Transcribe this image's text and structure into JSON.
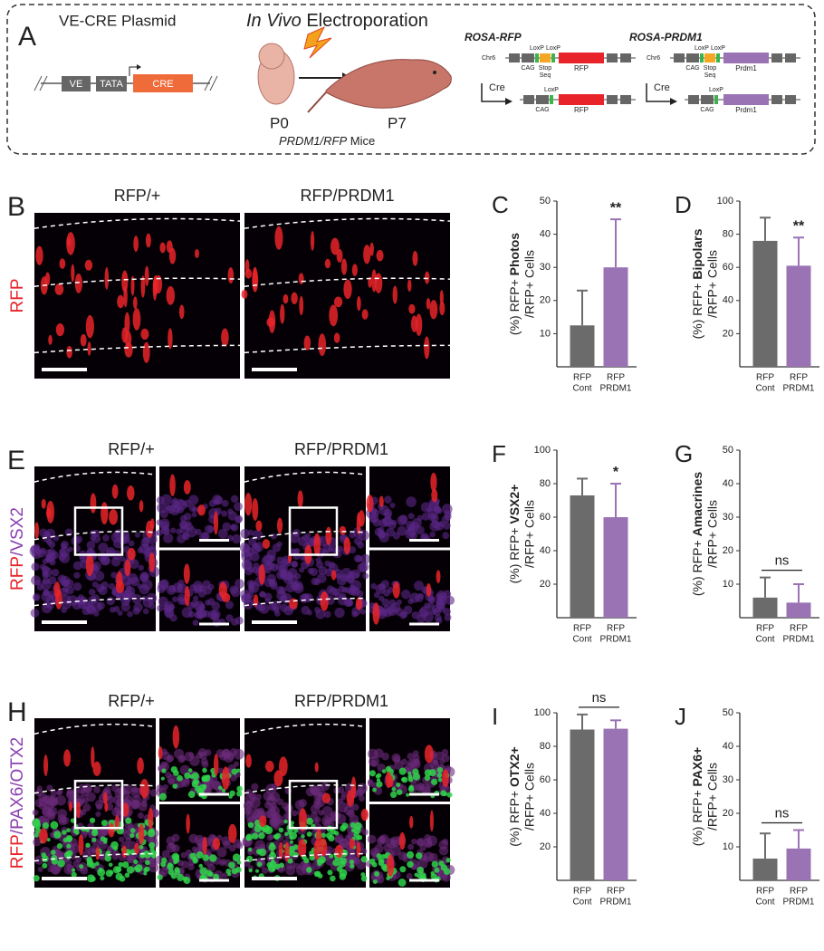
{
  "panel_a": {
    "label": "A",
    "plasmid_title": "VE-CRE Plasmid",
    "plasmid_elements": [
      "VE",
      "TATA",
      "CRE"
    ],
    "electroporation_title": [
      "In Vivo",
      " Electroporation"
    ],
    "ages": [
      "P0",
      "P7"
    ],
    "mice": [
      "PRDM1/RFP",
      " Mice"
    ],
    "constructs": [
      {
        "name": "ROSA-RFP",
        "chr": "Chr6",
        "loxp": [
          "LoxP",
          "LoxP"
        ],
        "cag": "CAG",
        "stop": [
          "Stop",
          "Seq"
        ],
        "gene": "RFP",
        "cre": "Cre",
        "recombined": [
          "LoxP",
          "CAG",
          "RFP"
        ]
      },
      {
        "name": "ROSA-PRDM1",
        "chr": "Chr6",
        "loxp": [
          "LoxP",
          "LoxP"
        ],
        "cag": "CAG",
        "stop": [
          "Stop",
          "Seq"
        ],
        "gene": "Prdm1",
        "cre": "Cre",
        "recombined": [
          "LoxP",
          "CAG",
          "Prdm1"
        ]
      }
    ]
  },
  "image_panels": [
    {
      "label": "B",
      "titles": [
        "RFP/+",
        "RFP/PRDM1"
      ],
      "stain": [
        "RFP"
      ]
    },
    {
      "label": "E",
      "titles": [
        "RFP/+",
        "RFP/PRDM1"
      ],
      "stain": [
        "RFP",
        "/VSX2"
      ]
    },
    {
      "label": "H",
      "titles": [
        "RFP/+",
        "RFP/PRDM1"
      ],
      "stain": [
        "RFP",
        "/PAX6",
        "/OTX2"
      ]
    }
  ],
  "chart_data": [
    {
      "type": "bar",
      "panel": "C",
      "ylabel": [
        "(%) RFP+ ",
        "Photos",
        "/RFP+ Cells"
      ],
      "categories": [
        [
          "RFP",
          "Cont"
        ],
        [
          "RFP",
          "PRDM1"
        ]
      ],
      "values": [
        12.5,
        30
      ],
      "errors": [
        10.5,
        14.5
      ],
      "colors": [
        "#6b6b6b",
        "#9a73b5"
      ],
      "ylim": [
        0,
        50
      ],
      "yticks": [
        10,
        20,
        30,
        40,
        50
      ],
      "annotation": "**"
    },
    {
      "type": "bar",
      "panel": "D",
      "ylabel": [
        "(%) RFP+ ",
        "Bipolars",
        "/RFP+ Cells"
      ],
      "categories": [
        [
          "RFP",
          "Cont"
        ],
        [
          "RFP",
          "PRDM1"
        ]
      ],
      "values": [
        76,
        61
      ],
      "errors": [
        14,
        17
      ],
      "colors": [
        "#6b6b6b",
        "#9a73b5"
      ],
      "ylim": [
        0,
        100
      ],
      "yticks": [
        20,
        40,
        60,
        80,
        100
      ],
      "annotation": "**"
    },
    {
      "type": "bar",
      "panel": "F",
      "ylabel": [
        "(%) RFP+ ",
        "VSX2+",
        "/RFP+ Cells"
      ],
      "categories": [
        [
          "RFP",
          "Cont"
        ],
        [
          "RFP",
          "PRDM1"
        ]
      ],
      "values": [
        73,
        60
      ],
      "errors": [
        10,
        20
      ],
      "colors": [
        "#6b6b6b",
        "#9a73b5"
      ],
      "ylim": [
        0,
        100
      ],
      "yticks": [
        20,
        40,
        60,
        80,
        100
      ],
      "annotation": "*"
    },
    {
      "type": "bar",
      "panel": "G",
      "ylabel": [
        "(%) RFP+ ",
        "Amacrines",
        "/RFP+ Cells"
      ],
      "categories": [
        [
          "RFP",
          "Cont"
        ],
        [
          "RFP",
          "PRDM1"
        ]
      ],
      "values": [
        6,
        4.5
      ],
      "errors": [
        6,
        5.5
      ],
      "colors": [
        "#6b6b6b",
        "#9a73b5"
      ],
      "ylim": [
        0,
        50
      ],
      "yticks": [
        10,
        20,
        30,
        40,
        50
      ],
      "annotation": "ns",
      "bracket": true
    },
    {
      "type": "bar",
      "panel": "I",
      "ylabel": [
        "(%) RFP+ ",
        "OTX2+",
        "/RFP+ Cells"
      ],
      "categories": [
        [
          "RFP",
          "Cont"
        ],
        [
          "RFP",
          "PRDM1"
        ]
      ],
      "values": [
        90,
        90.5
      ],
      "errors": [
        9,
        5
      ],
      "colors": [
        "#6b6b6b",
        "#9a73b5"
      ],
      "ylim": [
        0,
        100
      ],
      "yticks": [
        20,
        40,
        60,
        80,
        100
      ],
      "annotation": "ns",
      "bracket": true
    },
    {
      "type": "bar",
      "panel": "J",
      "ylabel": [
        "(%) RFP+ ",
        "PAX6+",
        "/RFP+ Cells"
      ],
      "categories": [
        [
          "RFP",
          "Cont"
        ],
        [
          "RFP",
          "PRDM1"
        ]
      ],
      "values": [
        6.5,
        9.5
      ],
      "errors": [
        7.5,
        5.5
      ],
      "colors": [
        "#6b6b6b",
        "#9a73b5"
      ],
      "ylim": [
        0,
        50
      ],
      "yticks": [
        10,
        20,
        30,
        40,
        50
      ],
      "annotation": "ns",
      "bracket": true
    }
  ]
}
